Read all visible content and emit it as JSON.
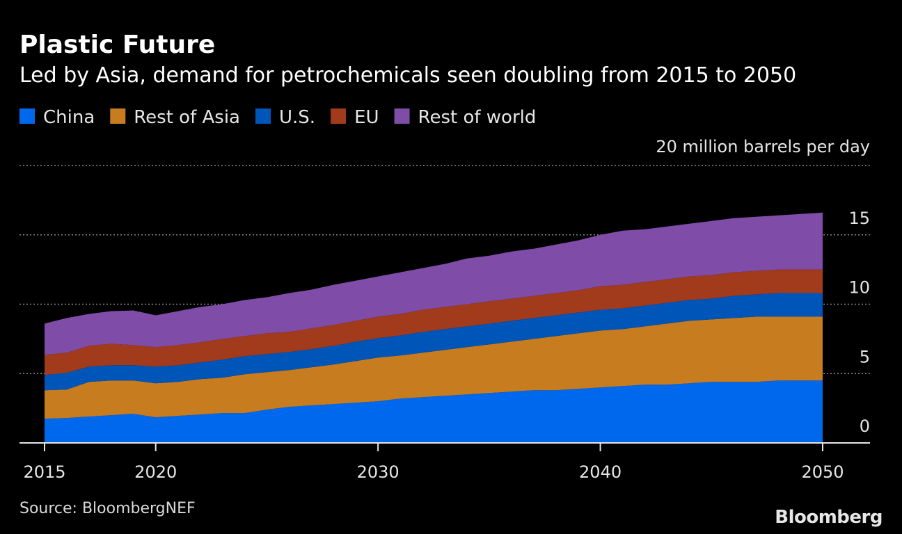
{
  "chart_data": {
    "type": "area",
    "stacked": true,
    "title": "Plastic Future",
    "subtitle": "Led by Asia, demand for petrochemicals seen doubling from 2015 to 2050",
    "ylabel": "20 million barrels per day",
    "ylim": [
      0,
      20
    ],
    "y_ticks": [
      "0",
      "5",
      "10",
      "15"
    ],
    "y_tick_values": [
      0,
      5,
      10,
      15
    ],
    "x_ticks": [
      "2015",
      "2020",
      "2030",
      "2040",
      "2050"
    ],
    "x_tick_values": [
      2015,
      2020,
      2030,
      2040,
      2050
    ],
    "grid": true,
    "legend_position": "top-left",
    "x": [
      2015,
      2016,
      2017,
      2018,
      2019,
      2020,
      2021,
      2022,
      2023,
      2024,
      2025,
      2026,
      2027,
      2028,
      2029,
      2030,
      2031,
      2032,
      2033,
      2034,
      2035,
      2036,
      2037,
      2038,
      2039,
      2040,
      2041,
      2042,
      2043,
      2044,
      2045,
      2046,
      2047,
      2048,
      2049,
      2050
    ],
    "series": [
      {
        "name": "China",
        "color": "#0068ec",
        "values": [
          1.75,
          1.8,
          1.9,
          2.0,
          2.1,
          1.85,
          1.95,
          2.05,
          2.15,
          2.15,
          2.4,
          2.6,
          2.7,
          2.8,
          2.9,
          3.0,
          3.2,
          3.3,
          3.4,
          3.5,
          3.6,
          3.7,
          3.8,
          3.8,
          3.9,
          4.0,
          4.1,
          4.2,
          4.2,
          4.3,
          4.4,
          4.4,
          4.4,
          4.5,
          4.5,
          4.5
        ]
      },
      {
        "name": "Rest of Asia",
        "color": "#c67c1f",
        "values": [
          2.05,
          2.05,
          2.5,
          2.5,
          2.4,
          2.45,
          2.45,
          2.55,
          2.55,
          2.8,
          2.7,
          2.65,
          2.75,
          2.85,
          3.0,
          3.15,
          3.1,
          3.2,
          3.3,
          3.4,
          3.5,
          3.6,
          3.7,
          3.9,
          4.0,
          4.1,
          4.1,
          4.2,
          4.4,
          4.5,
          4.5,
          4.6,
          4.7,
          4.6,
          4.6,
          4.6
        ]
      },
      {
        "name": "U.S.",
        "color": "#0055b9",
        "values": [
          1.1,
          1.2,
          1.1,
          1.1,
          1.1,
          1.2,
          1.2,
          1.2,
          1.3,
          1.3,
          1.3,
          1.3,
          1.3,
          1.35,
          1.4,
          1.4,
          1.45,
          1.5,
          1.5,
          1.5,
          1.5,
          1.5,
          1.5,
          1.5,
          1.5,
          1.5,
          1.5,
          1.5,
          1.5,
          1.5,
          1.5,
          1.6,
          1.6,
          1.7,
          1.7,
          1.7
        ]
      },
      {
        "name": "EU",
        "color": "#a23a1c",
        "values": [
          1.45,
          1.45,
          1.5,
          1.55,
          1.45,
          1.4,
          1.45,
          1.45,
          1.5,
          1.45,
          1.5,
          1.45,
          1.5,
          1.5,
          1.5,
          1.55,
          1.55,
          1.6,
          1.6,
          1.6,
          1.6,
          1.6,
          1.6,
          1.6,
          1.6,
          1.7,
          1.7,
          1.7,
          1.7,
          1.7,
          1.7,
          1.7,
          1.7,
          1.7,
          1.7,
          1.7
        ]
      },
      {
        "name": "Rest of world",
        "color": "#7f4ca8",
        "values": [
          2.25,
          2.5,
          2.3,
          2.35,
          2.5,
          2.3,
          2.45,
          2.55,
          2.5,
          2.6,
          2.6,
          2.8,
          2.8,
          2.9,
          2.9,
          2.9,
          3.0,
          3.0,
          3.1,
          3.3,
          3.3,
          3.4,
          3.4,
          3.5,
          3.6,
          3.7,
          3.9,
          3.8,
          3.8,
          3.8,
          3.9,
          3.9,
          3.9,
          3.9,
          4.0,
          4.1
        ]
      }
    ]
  },
  "source_label": "Source: BloombergNEF",
  "brand": "Bloomberg"
}
